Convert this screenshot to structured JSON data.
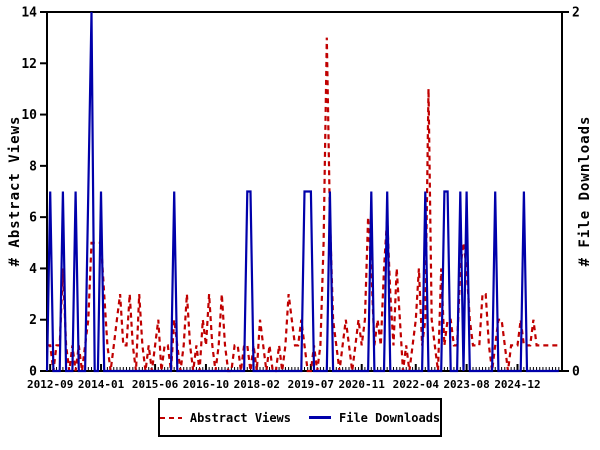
{
  "chart_data": {
    "type": "line",
    "title": "",
    "background": "#ffffff",
    "frame_color": "#000000",
    "x_axis": {
      "start_month": "2012-08",
      "months_total": 162,
      "tick_labels": [
        "2012-09",
        "2014-01",
        "2015-06",
        "2016-10",
        "2018-02",
        "2019-07",
        "2020-11",
        "2022-04",
        "2023-08",
        "2024-12"
      ],
      "tick_month_indices": [
        1,
        17,
        34,
        50,
        66,
        83,
        99,
        116,
        132,
        148
      ],
      "minor_ticks": "every month"
    },
    "left_axis": {
      "label": "# Abstract Views",
      "min": 0,
      "max": 14,
      "tick_values": [
        0,
        2,
        4,
        6,
        8,
        10,
        12,
        14
      ],
      "tick_labels": [
        "0",
        "2",
        "4",
        "6",
        "8",
        "10",
        "12",
        "14"
      ]
    },
    "right_axis": {
      "label": "# File Downloads",
      "min": 0,
      "max": 2,
      "tick_values": [
        0,
        2
      ],
      "tick_labels": [
        "0",
        "2"
      ]
    },
    "legend_position": "below-chart",
    "series": [
      {
        "name": "Abstract Views",
        "axis": "left",
        "color": "#c00000",
        "style": "dashed",
        "values": [
          1,
          1,
          0,
          1,
          1,
          4,
          1,
          0,
          1,
          0,
          1,
          0,
          1,
          2,
          5,
          5,
          5,
          5,
          3,
          1,
          0,
          1,
          2,
          3,
          1,
          1,
          3,
          1,
          0,
          3,
          1,
          0,
          1,
          0,
          1,
          2,
          0,
          1,
          1,
          0,
          2,
          1,
          0,
          1,
          3,
          1,
          0,
          1,
          0,
          2,
          1,
          3,
          1,
          0,
          1,
          3,
          1,
          0,
          0,
          1,
          1,
          0,
          1,
          1,
          0,
          1,
          0,
          2,
          1,
          0,
          1,
          0,
          0,
          1,
          0,
          1,
          3,
          2,
          1,
          1,
          2,
          1,
          0,
          0,
          1,
          0,
          1,
          5,
          13,
          6,
          2,
          1,
          0,
          1,
          2,
          1,
          0,
          1,
          2,
          1,
          2,
          6,
          4,
          1,
          2,
          1,
          4,
          6,
          3,
          1,
          4,
          2,
          0,
          1,
          0,
          1,
          2,
          4,
          1,
          2,
          11,
          2,
          1,
          0,
          4,
          1,
          2,
          2,
          1,
          1,
          4,
          5,
          4,
          2,
          1,
          1,
          1,
          3,
          3,
          1,
          0,
          1,
          2,
          2,
          1,
          0,
          1,
          1,
          1,
          2,
          1,
          1,
          1,
          2,
          1,
          1,
          1,
          1,
          1,
          1,
          1,
          1
        ]
      },
      {
        "name": "File Downloads",
        "axis": "right",
        "color": "#0000aa",
        "style": "solid",
        "values": [
          0,
          1,
          0,
          0,
          0,
          1,
          0,
          0,
          0,
          1,
          0,
          0,
          0,
          1,
          2,
          0,
          0,
          1,
          0,
          0,
          0,
          0,
          0,
          0,
          0,
          0,
          0,
          0,
          0,
          0,
          0,
          0,
          0,
          0,
          0,
          0,
          0,
          0,
          0,
          0,
          1,
          0,
          0,
          0,
          0,
          0,
          0,
          0,
          0,
          0,
          0,
          0,
          0,
          0,
          0,
          0,
          0,
          0,
          0,
          0,
          0,
          0,
          0,
          1,
          1,
          0,
          0,
          0,
          0,
          0,
          0,
          0,
          0,
          0,
          0,
          0,
          0,
          0,
          0,
          0,
          0,
          1,
          1,
          1,
          0,
          0,
          0,
          0,
          0,
          1,
          0,
          0,
          0,
          0,
          0,
          0,
          0,
          0,
          0,
          0,
          0,
          0,
          1,
          0,
          0,
          0,
          0,
          1,
          0,
          0,
          0,
          0,
          0,
          0,
          0,
          0,
          0,
          0,
          0,
          1,
          0,
          0,
          0,
          0,
          0,
          1,
          1,
          0,
          0,
          0,
          1,
          0,
          1,
          0,
          0,
          0,
          0,
          0,
          0,
          0,
          0,
          1,
          0,
          0,
          0,
          0,
          0,
          0,
          0,
          0,
          1,
          0,
          0,
          0,
          0,
          0,
          0,
          0,
          0,
          0,
          0,
          0
        ]
      }
    ]
  }
}
